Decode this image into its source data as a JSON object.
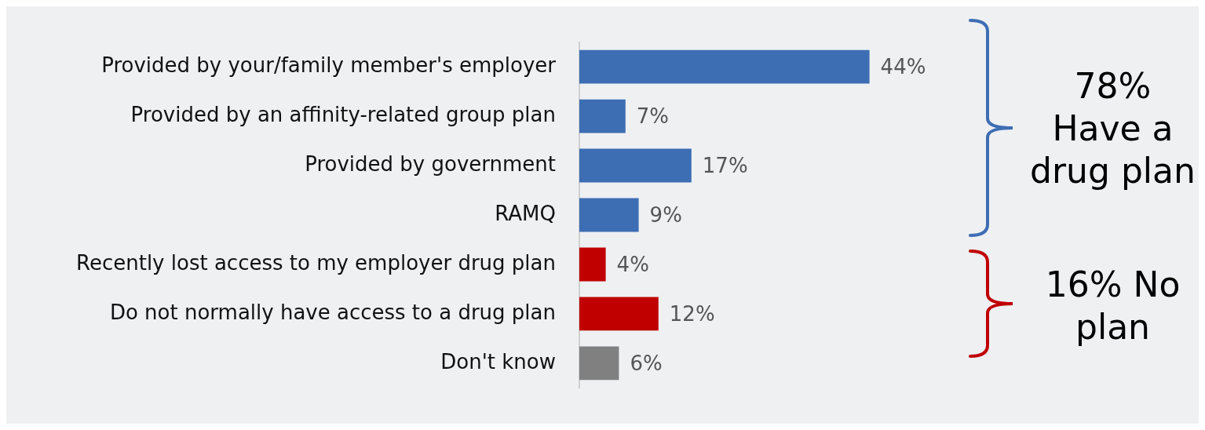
{
  "chart_data": {
    "type": "bar",
    "orientation": "horizontal",
    "categories": [
      "Provided by your/family member's employer",
      "Provided by an affinity-related group plan",
      "Provided by government",
      "RAMQ",
      "Recently lost access to my employer drug plan",
      "Do not normally have access to a drug plan",
      "Don't know"
    ],
    "values": [
      44,
      7,
      17,
      9,
      4,
      12,
      6
    ],
    "colors": [
      "#3d6db3",
      "#3d6db3",
      "#3d6db3",
      "#3d6db3",
      "#c00000",
      "#c00000",
      "#808080"
    ],
    "value_labels": [
      "44%",
      "7%",
      "17%",
      "9%",
      "4%",
      "12%",
      "6%"
    ],
    "grid": false,
    "legend": false,
    "annotations": [
      "78% Have a drug plan",
      "16% No plan"
    ]
  }
}
